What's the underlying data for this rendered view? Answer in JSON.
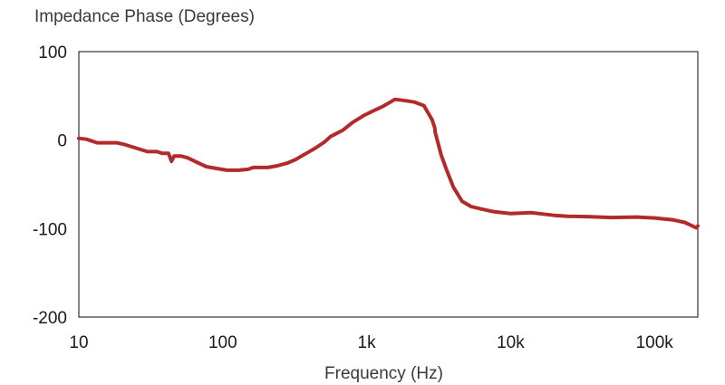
{
  "chart_data": {
    "type": "line",
    "title": "Impedance Phase (Degrees)",
    "xlabel": "Frequency (Hz)",
    "ylabel": "",
    "x_scale": "log",
    "xlim": [
      10,
      200000
    ],
    "ylim": [
      -200,
      100
    ],
    "x_ticks": [
      {
        "value": 10,
        "label": "10"
      },
      {
        "value": 100,
        "label": "100"
      },
      {
        "value": 1000,
        "label": "1k"
      },
      {
        "value": 10000,
        "label": "10k"
      },
      {
        "value": 100000,
        "label": "100k"
      }
    ],
    "y_ticks": [
      {
        "value": 100,
        "label": "100"
      },
      {
        "value": 0,
        "label": "0"
      },
      {
        "value": -100,
        "label": "-100"
      },
      {
        "value": -200,
        "label": "-200"
      }
    ],
    "grid": false,
    "colors": {
      "line": "#b22a2a",
      "axes": "#333333"
    },
    "series": [
      {
        "points": [
          [
            10,
            2
          ],
          [
            11.3,
            1
          ],
          [
            13.4,
            -3
          ],
          [
            16,
            -3
          ],
          [
            18.3,
            -3
          ],
          [
            20.9,
            -5
          ],
          [
            25,
            -9
          ],
          [
            30,
            -13
          ],
          [
            35,
            -13
          ],
          [
            38,
            -15
          ],
          [
            42,
            -15
          ],
          [
            44,
            -24
          ],
          [
            46,
            -18
          ],
          [
            51,
            -18
          ],
          [
            57,
            -20
          ],
          [
            66,
            -25
          ],
          [
            77,
            -30
          ],
          [
            90,
            -32
          ],
          [
            107,
            -34
          ],
          [
            129,
            -34
          ],
          [
            150,
            -33
          ],
          [
            163,
            -31
          ],
          [
            180,
            -31
          ],
          [
            206,
            -31
          ],
          [
            240,
            -29
          ],
          [
            280,
            -26
          ],
          [
            320,
            -22
          ],
          [
            380,
            -15
          ],
          [
            440,
            -9
          ],
          [
            510,
            -2
          ],
          [
            560,
            4
          ],
          [
            680,
            11
          ],
          [
            800,
            20
          ],
          [
            960,
            28
          ],
          [
            1110,
            33
          ],
          [
            1290,
            38
          ],
          [
            1460,
            43
          ],
          [
            1570,
            46
          ],
          [
            1780,
            45
          ],
          [
            2150,
            43
          ],
          [
            2500,
            39
          ],
          [
            2850,
            23
          ],
          [
            2970,
            14
          ],
          [
            3000,
            8
          ],
          [
            3300,
            -17
          ],
          [
            3600,
            -34
          ],
          [
            4000,
            -53
          ],
          [
            4600,
            -69
          ],
          [
            5300,
            -75
          ],
          [
            6300,
            -78
          ],
          [
            7700,
            -81
          ],
          [
            10000,
            -83
          ],
          [
            14000,
            -82
          ],
          [
            20000,
            -85
          ],
          [
            25000,
            -86
          ],
          [
            34000,
            -86.5
          ],
          [
            50000,
            -87.5
          ],
          [
            75000,
            -87
          ],
          [
            100000,
            -88
          ],
          [
            133000,
            -90
          ],
          [
            162000,
            -93
          ],
          [
            195000,
            -99
          ],
          [
            200000,
            -97
          ]
        ]
      }
    ]
  }
}
